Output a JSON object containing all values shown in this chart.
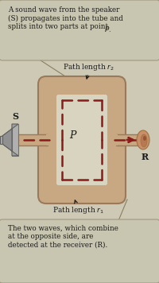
{
  "bg_color": "#cdc9b4",
  "box_fill": "#c8c5b0",
  "box_edge": "#a09880",
  "tube_fill": "#c8a882",
  "tube_edge": "#9a7a5a",
  "inner_bg": "#d8d4c0",
  "dash_color": "#8b1a1a",
  "arrow_color": "#8b1a1a",
  "text_color": "#1a1a1a",
  "speaker_dark": "#888888",
  "speaker_mid": "#aaaaaa",
  "speaker_light": "#cccccc",
  "ear_color": "#c8906a",
  "ear_edge": "#a07040",
  "leader_color": "#8a8060",
  "top_box_text": "A sound wave from the speaker\n(S) propagates into the tube and\nsplits into two parts at point ",
  "top_box_italic": "P.",
  "bottom_box_text": "The two waves, which combine\nat the opposite side, are\ndetected at the receiver (R).",
  "label_P": "P",
  "label_S": "S",
  "label_R": "R",
  "label_r2": "Path length ",
  "label_r1": "Path length ",
  "fig_width": 2.0,
  "fig_height": 3.56,
  "dpi": 100
}
